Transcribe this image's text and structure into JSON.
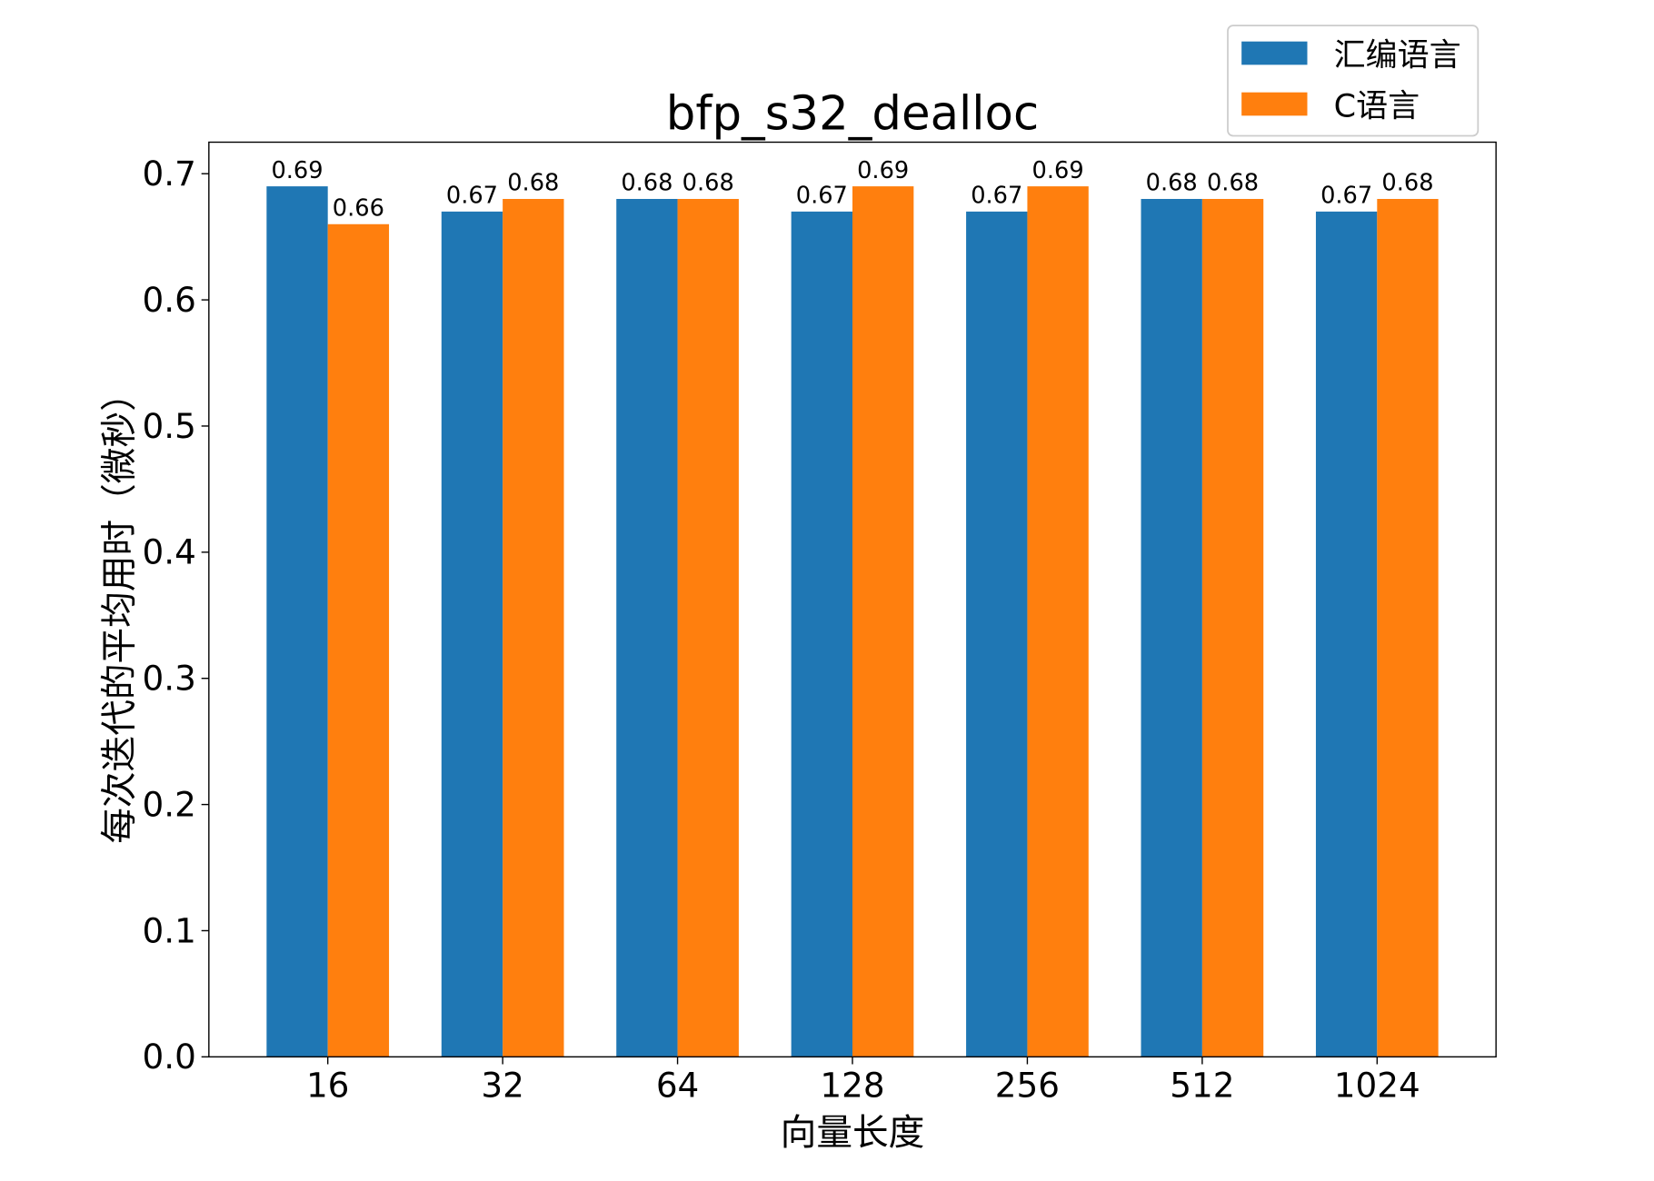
{
  "chart_data": {
    "type": "bar",
    "title": "bfp_s32_dealloc",
    "xlabel": "向量长度",
    "ylabel": "每次迭代的平均用时（微秒）",
    "categories": [
      "16",
      "32",
      "64",
      "128",
      "256",
      "512",
      "1024"
    ],
    "series": [
      {
        "name": "汇编语言",
        "color": "#1f77b4",
        "values": [
          0.69,
          0.67,
          0.68,
          0.67,
          0.67,
          0.68,
          0.67
        ],
        "labels": [
          "0.69",
          "0.67",
          "0.68",
          "0.67",
          "0.67",
          "0.68",
          "0.67"
        ]
      },
      {
        "name": "C语言",
        "color": "#ff7f0e",
        "values": [
          0.66,
          0.68,
          0.68,
          0.69,
          0.69,
          0.68,
          0.68
        ],
        "labels": [
          "0.66",
          "0.68",
          "0.68",
          "0.69",
          "0.69",
          "0.68",
          "0.68"
        ]
      }
    ],
    "ylim": [
      0,
      0.725
    ],
    "yticks": [
      "0.0",
      "0.1",
      "0.2",
      "0.3",
      "0.4",
      "0.5",
      "0.6",
      "0.7"
    ],
    "grid": false,
    "legend": "top-right"
  }
}
